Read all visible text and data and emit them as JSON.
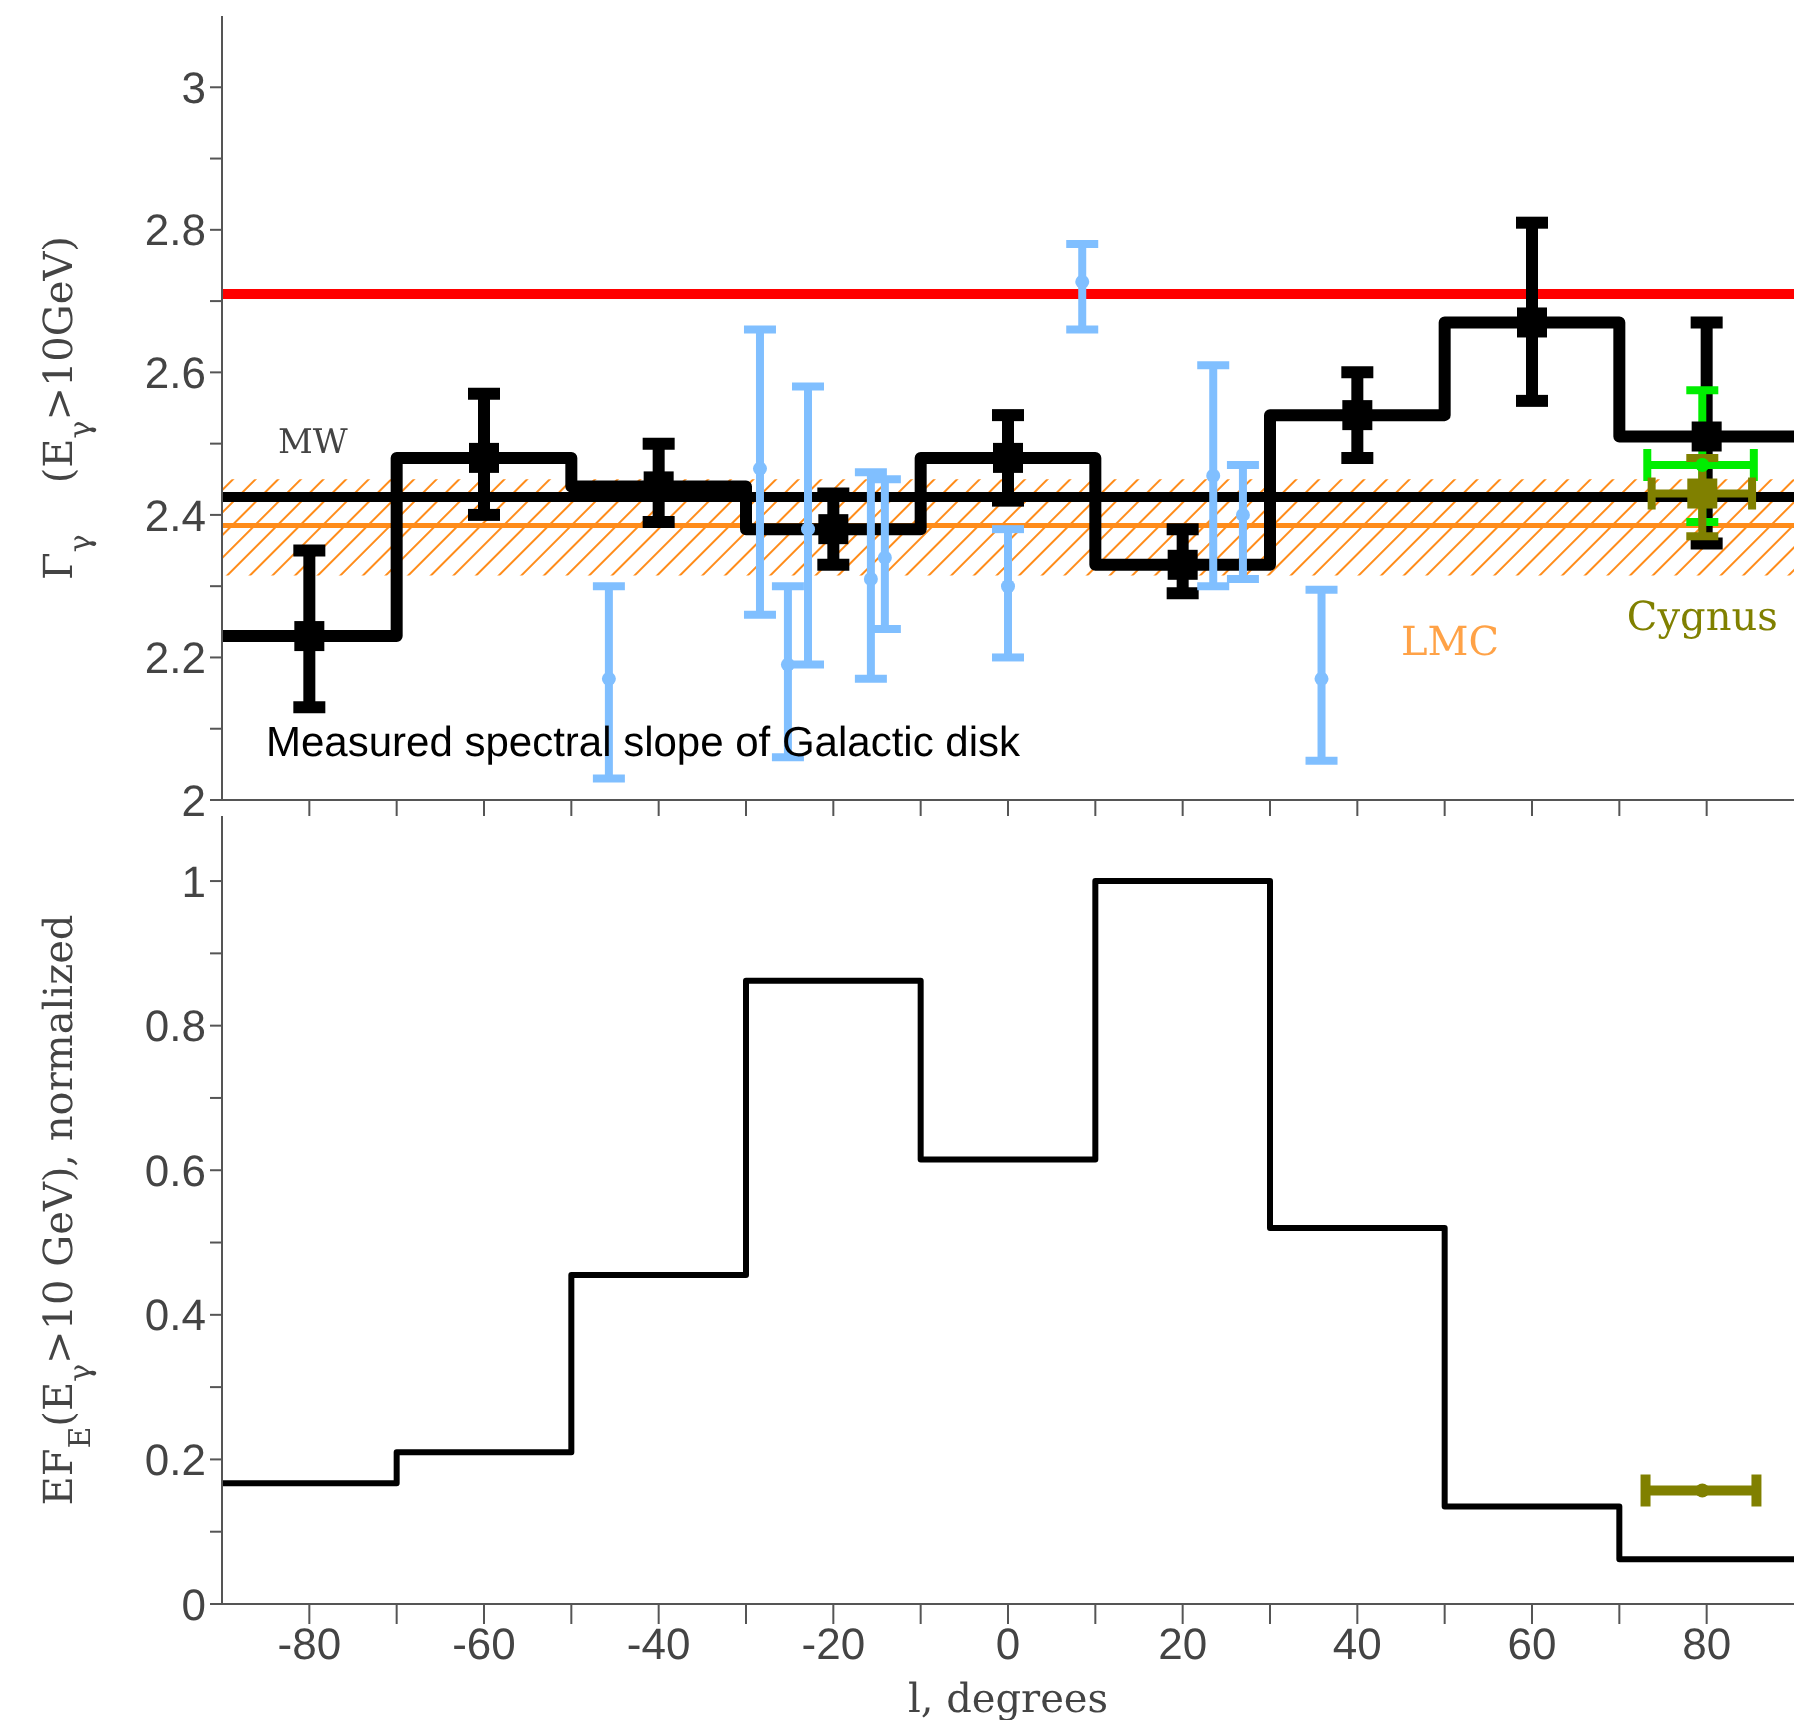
{
  "chart_data": [
    {
      "type": "scatter",
      "ylabel": "Γ$_{γ}$    (E$_{γ}$>10GeV)",
      "annotations": [
        "Measured spectral slope of Galactic disk"
      ],
      "xlim": [
        -90,
        90
      ],
      "xticks": [
        {
          "value": -80,
          "label": null
        },
        {
          "value": -70,
          "label": null
        },
        {
          "value": -60,
          "label": null
        },
        {
          "value": -50,
          "label": null
        },
        {
          "value": -40,
          "label": null
        },
        {
          "value": -30,
          "label": null
        },
        {
          "value": -20,
          "label": null
        },
        {
          "value": -10,
          "label": null
        },
        {
          "value": 0,
          "label": null
        },
        {
          "value": 10,
          "label": null
        },
        {
          "value": 20,
          "label": null
        },
        {
          "value": 30,
          "label": null
        },
        {
          "value": 40,
          "label": null
        },
        {
          "value": 50,
          "label": null
        },
        {
          "value": 60,
          "label": null
        },
        {
          "value": 70,
          "label": null
        },
        {
          "value": 80,
          "label": null
        }
      ],
      "ylim": [
        2,
        3.1
      ],
      "yticks": [
        2,
        {
          "value": 2.1,
          "label": null
        },
        2.2,
        {
          "value": 2.3,
          "label": null
        },
        2.4,
        {
          "value": 2.5,
          "label": null
        },
        2.6,
        {
          "value": 2.7,
          "label": null
        },
        2.8,
        {
          "value": 2.9,
          "label": null
        },
        3
      ],
      "tick_labels": "y",
      "grid": false,
      "legend": false,
      "ref_lines": [
        {
          "axis": "y",
          "value": 2.425,
          "label": "MW",
          "color": "#000000"
        },
        {
          "axis": "y",
          "value": 2.71,
          "color": "#ff0000"
        },
        {
          "axis": "y",
          "value": 2.385,
          "color": "#ff8c1a"
        }
      ],
      "bands": [
        {
          "axis": "y",
          "from": 2.315,
          "to": 2.45,
          "label": "LMC",
          "color": "#ff8c1a"
        }
      ],
      "series": [
        {
          "type": "step",
          "color": "#000000",
          "x": [
            -90,
            -70,
            -50,
            -30,
            -10,
            10,
            30,
            50,
            70,
            90
          ],
          "values": [
            2.23,
            2.48,
            2.44,
            2.38,
            2.48,
            2.33,
            2.54,
            2.67,
            2.51,
            2.51
          ]
        },
        {
          "color": "#000000",
          "marker": "square",
          "x": [
            -80,
            -60,
            -40,
            -20,
            0,
            20,
            40,
            60,
            80
          ],
          "values": [
            2.23,
            2.48,
            2.44,
            2.38,
            2.48,
            2.33,
            2.54,
            2.67,
            2.51
          ],
          "errors": [
            [
              2.13,
              2.35
            ],
            [
              2.4,
              2.57
            ],
            [
              2.39,
              2.5
            ],
            [
              2.33,
              2.43
            ],
            [
              2.42,
              2.54
            ],
            [
              2.29,
              2.38
            ],
            [
              2.48,
              2.6
            ],
            [
              2.56,
              2.81
            ],
            [
              2.36,
              2.67
            ]
          ]
        },
        {
          "color": "#80bfff",
          "marker": "circle",
          "x": [
            -45.7,
            -28.4,
            -25.2,
            -22.9,
            -15.7,
            -14.1,
            0,
            8.5,
            23.5,
            26.9,
            35.9
          ],
          "values": [
            2.17,
            2.465,
            2.19,
            2.38,
            2.31,
            2.34,
            2.3,
            2.727,
            2.455,
            2.4,
            2.17
          ],
          "errors": [
            [
              2.03,
              2.3
            ],
            [
              2.26,
              2.66
            ],
            [
              2.06,
              2.3
            ],
            [
              2.19,
              2.58
            ],
            [
              2.17,
              2.46
            ],
            [
              2.24,
              2.45
            ],
            [
              2.2,
              2.38
            ],
            [
              2.66,
              2.78
            ],
            [
              2.3,
              2.61
            ],
            [
              2.31,
              2.47
            ],
            [
              2.055,
              2.295
            ]
          ]
        },
        {
          "color": "#00ee00",
          "marker": "circle",
          "x": [
            79.5
          ],
          "values": [
            2.47
          ],
          "errors": [
            [
              2.39,
              2.575
            ]
          ],
          "xerrors": [
            [
              73.2,
              85.4
            ]
          ]
        },
        {
          "name": "Cygnus",
          "color": "#808000",
          "marker": "square",
          "x": [
            79.5
          ],
          "values": [
            2.43
          ],
          "errors": [
            [
              2.37,
              2.48
            ]
          ],
          "xerrors": [
            [
              73.7,
              85.2
            ]
          ]
        }
      ]
    },
    {
      "type": "step",
      "xlabel": "l, degrees",
      "ylabel": "EF$_{E}$(E$_{γ}$>10 GeV), normalized",
      "xlim": [
        -90,
        90
      ],
      "xticks": [
        -80,
        {
          "value": -70,
          "label": null
        },
        -60,
        {
          "value": -50,
          "label": null
        },
        -40,
        {
          "value": -30,
          "label": null
        },
        -20,
        {
          "value": -10,
          "label": null
        },
        0,
        {
          "value": 10,
          "label": null
        },
        20,
        {
          "value": 30,
          "label": null
        },
        40,
        {
          "value": 50,
          "label": null
        },
        60,
        {
          "value": 70,
          "label": null
        },
        80
      ],
      "ylim": [
        0,
        1.09
      ],
      "yticks": [
        0,
        {
          "value": 0.1,
          "label": null
        },
        0.2,
        {
          "value": 0.3,
          "label": null
        },
        0.4,
        {
          "value": 0.5,
          "label": null
        },
        0.6,
        {
          "value": 0.7,
          "label": null
        },
        0.8,
        {
          "value": 0.9,
          "label": null
        },
        1
      ],
      "grid": false,
      "legend": false,
      "series": [
        {
          "color": "#000000",
          "x": [
            -90,
            -70,
            -50,
            -30,
            -10,
            10,
            30,
            50,
            70,
            90
          ],
          "values": [
            0.167,
            0.21,
            0.455,
            0.862,
            0.615,
            1,
            0.52,
            0.135,
            0.062,
            0.062
          ]
        },
        {
          "type": "scatter",
          "color": "#808000",
          "marker": "circle",
          "x": [
            79.5
          ],
          "values": [
            0.157
          ],
          "xerrors": [
            [
              73,
              85.7
            ]
          ]
        }
      ]
    }
  ]
}
